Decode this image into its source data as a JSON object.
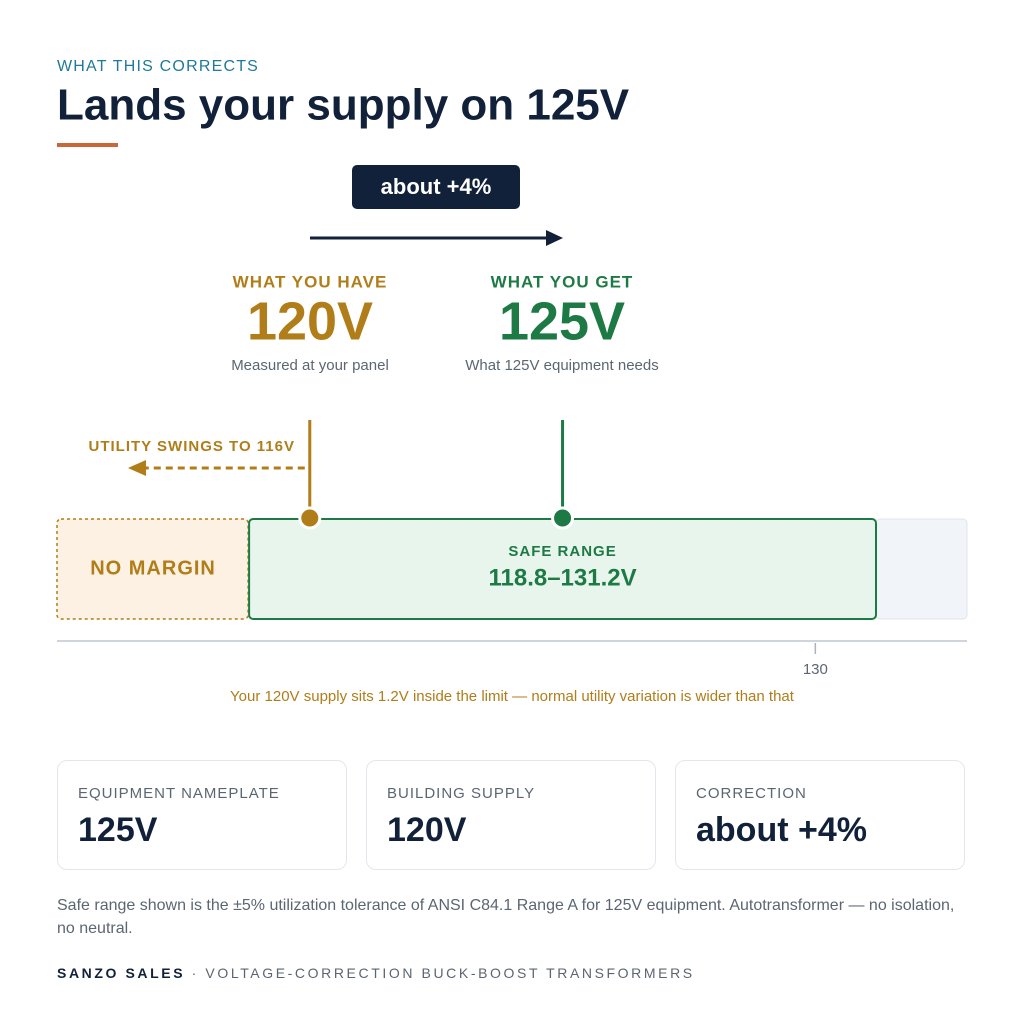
{
  "header": {
    "eyebrow": "WHAT THIS CORRECTS",
    "title": "Lands your supply on 125V"
  },
  "change": {
    "label": "about +4%"
  },
  "have": {
    "label": "WHAT YOU HAVE",
    "value": "120V",
    "note": "Measured at your panel"
  },
  "get": {
    "label": "WHAT YOU GET",
    "value": "125V",
    "note": "What 125V equipment needs"
  },
  "swing": {
    "label": "UTILITY SWINGS TO 116V"
  },
  "scale": {
    "xlim": [
      115,
      133
    ],
    "xticks": [
      130
    ],
    "have": 120,
    "get": 125,
    "swing": 116,
    "safe": [
      118.8,
      131.2
    ],
    "no_margin_label": "NO MARGIN",
    "safe_label": "SAFE RANGE",
    "safe_text": "118.8–131.2V"
  },
  "warning": "Your 120V supply sits 1.2V inside the limit — normal utility variation is wider than that",
  "cards": [
    {
      "label": "EQUIPMENT NAMEPLATE",
      "value": "125V"
    },
    {
      "label": "BUILDING SUPPLY",
      "value": "120V"
    },
    {
      "label": "CORRECTION",
      "value": "about +4%"
    }
  ],
  "footnote": "Safe range shown is the ±5% utilization tolerance of ANSI C84.1 Range A for 125V equipment. Autotransformer — no isolation, no neutral.",
  "footer": {
    "brand": "SANZO SALES",
    "tagline": "VOLTAGE-CORRECTION BUCK-BOOST TRANSFORMERS"
  }
}
